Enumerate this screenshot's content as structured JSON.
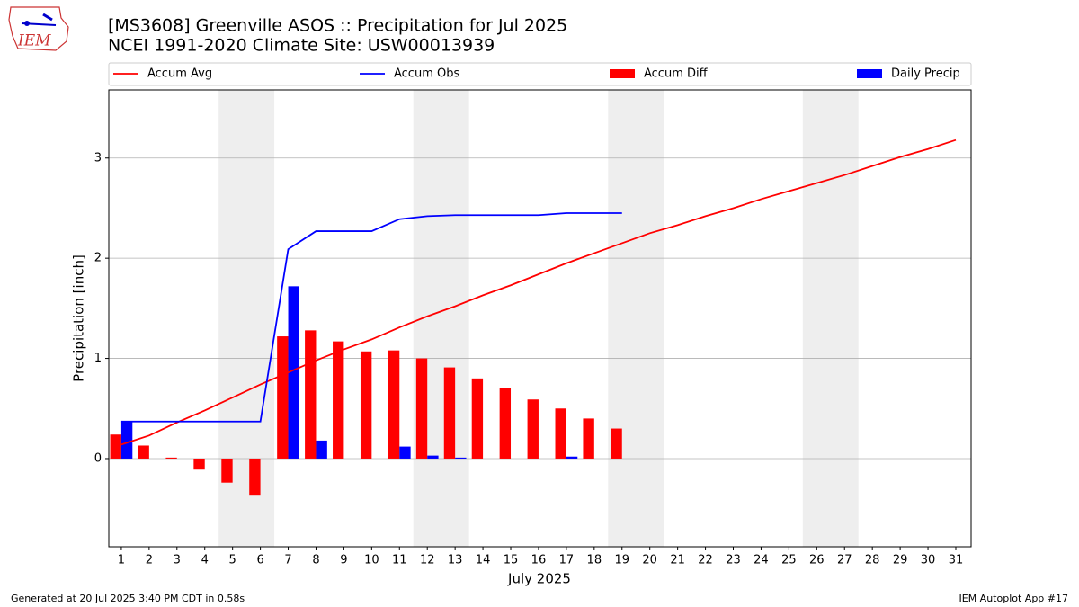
{
  "chart_data": {
    "type": "bar",
    "title": "[MS3608] Greenville ASOS :: Precipitation for Jul 2025",
    "subtitle": "NCEI 1991-2020 Climate Site: USW00013939",
    "logo_text": "IEM",
    "x_label": "July 2025",
    "y_label": "Precipitation [inch]",
    "footer_left": "Generated at 20 Jul 2025 3:40 PM CDT in 0.58s",
    "footer_right": "IEM Autoplot App #17",
    "x": [
      1,
      2,
      3,
      4,
      5,
      6,
      7,
      8,
      9,
      10,
      11,
      12,
      13,
      14,
      15,
      16,
      17,
      18,
      19,
      20,
      21,
      22,
      23,
      24,
      25,
      26,
      27,
      28,
      29,
      30,
      31
    ],
    "xlim": [
      0.55,
      31.55
    ],
    "xticks": [
      1,
      2,
      3,
      4,
      5,
      6,
      7,
      8,
      9,
      10,
      11,
      12,
      13,
      14,
      15,
      16,
      17,
      18,
      19,
      20,
      21,
      22,
      23,
      24,
      25,
      26,
      27,
      28,
      29,
      30,
      31
    ],
    "ylim": [
      -0.88,
      3.68
    ],
    "yticks": [
      0,
      1,
      2,
      3
    ],
    "grid": true,
    "shade_spans": [
      [
        4.5,
        6.5
      ],
      [
        11.5,
        13.5
      ],
      [
        18.5,
        20.5
      ],
      [
        25.5,
        27.5
      ]
    ],
    "shade_color": "#eeeeee",
    "series": [
      {
        "name": "Accum Avg",
        "kind": "line",
        "color": "#ff0000",
        "values": [
          0.14,
          0.23,
          0.36,
          0.48,
          0.61,
          0.74,
          0.86,
          0.98,
          1.09,
          1.19,
          1.31,
          1.42,
          1.52,
          1.63,
          1.73,
          1.84,
          1.95,
          2.05,
          2.15,
          2.25,
          2.33,
          2.42,
          2.5,
          2.59,
          2.67,
          2.75,
          2.83,
          2.92,
          3.01,
          3.09,
          3.18
        ]
      },
      {
        "name": "Accum Obs",
        "kind": "line",
        "color": "#0000ff",
        "values": [
          0.37,
          0.37,
          0.37,
          0.37,
          0.37,
          0.37,
          2.09,
          2.27,
          2.27,
          2.27,
          2.39,
          2.42,
          2.43,
          2.43,
          2.43,
          2.43,
          2.45,
          2.45,
          2.45,
          null,
          null,
          null,
          null,
          null,
          null,
          null,
          null,
          null,
          null,
          null,
          null
        ]
      },
      {
        "name": "Accum Diff",
        "kind": "bar",
        "offset": -0.2,
        "width": 0.4,
        "color": "#ff0000",
        "values": [
          0.24,
          0.13,
          0.01,
          -0.11,
          -0.24,
          -0.37,
          1.22,
          1.28,
          1.17,
          1.07,
          1.08,
          1.0,
          0.91,
          0.8,
          0.7,
          0.59,
          0.5,
          0.4,
          0.3,
          null,
          null,
          null,
          null,
          null,
          null,
          null,
          null,
          null,
          null,
          null,
          null
        ]
      },
      {
        "name": "Daily Precip",
        "kind": "bar",
        "offset": 0.2,
        "width": 0.4,
        "color": "#0000ff",
        "values": [
          0.37,
          0,
          0,
          0,
          0,
          0,
          1.72,
          0.18,
          0,
          0,
          0.12,
          0.03,
          0.01,
          0,
          0,
          0,
          0.02,
          0,
          0,
          null,
          null,
          null,
          null,
          null,
          null,
          null,
          null,
          null,
          null,
          null,
          null
        ]
      }
    ]
  }
}
